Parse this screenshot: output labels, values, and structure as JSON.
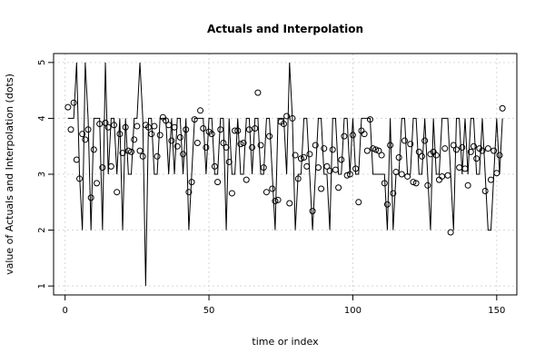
{
  "chart_data": {
    "type": "line",
    "title": "Actuals and Interpolation",
    "xlabel": "time or index",
    "ylabel": "value of Actuals and Interpolation (dots)",
    "xlim": [
      -4,
      157
    ],
    "ylim": [
      0.84,
      5.16
    ],
    "x_ticks": [
      0,
      50,
      100,
      150
    ],
    "x_tick_labels": [
      "0",
      "50",
      "100",
      "150"
    ],
    "y_ticks": [
      1,
      2,
      3,
      4,
      5
    ],
    "y_tick_labels": [
      "1",
      "2",
      "3",
      "4",
      "5"
    ],
    "grid": true,
    "series": [
      {
        "style": "line",
        "x": [
          1,
          2,
          3,
          4,
          5,
          6,
          7,
          8,
          9,
          10,
          11,
          12,
          13,
          14,
          15,
          16,
          17,
          18,
          19,
          20,
          21,
          22,
          23,
          24,
          25,
          26,
          27,
          28,
          29,
          30,
          31,
          32,
          33,
          34,
          35,
          36,
          37,
          38,
          39,
          40,
          41,
          42,
          43,
          44,
          45,
          46,
          47,
          48,
          49,
          50,
          51,
          52,
          53,
          54,
          55,
          56,
          57,
          58,
          59,
          60,
          61,
          62,
          63,
          64,
          65,
          66,
          67,
          68,
          69,
          70,
          71,
          72,
          73,
          74,
          75,
          76,
          77,
          78,
          79,
          80,
          81,
          82,
          83,
          84,
          85,
          86,
          87,
          88,
          89,
          90,
          91,
          92,
          93,
          94,
          95,
          96,
          97,
          98,
          99,
          100,
          101,
          102,
          103,
          104,
          105,
          106,
          107,
          108,
          109,
          110,
          111,
          112,
          113,
          114,
          115,
          116,
          117,
          118,
          119,
          120,
          121,
          122,
          123,
          124,
          125,
          126,
          127,
          128,
          129,
          130,
          131,
          132,
          133,
          134,
          135,
          136,
          137,
          138,
          139,
          140,
          141,
          142,
          143,
          144,
          145,
          146,
          147,
          148,
          149,
          150,
          151,
          152
        ],
        "values": [
          4,
          4,
          4,
          5,
          3,
          2,
          5,
          4,
          2,
          4,
          4,
          4,
          2,
          5,
          3,
          4,
          4,
          3,
          4,
          2,
          4,
          3,
          3,
          4,
          4,
          5,
          4,
          1,
          4,
          4,
          3,
          3,
          4,
          4,
          4,
          3,
          4,
          3,
          4,
          4,
          3,
          4,
          2,
          3,
          4,
          4,
          4,
          4,
          3,
          4,
          4,
          3,
          3,
          4,
          4,
          2,
          4,
          3,
          3,
          4,
          3,
          3,
          4,
          4,
          3,
          4,
          4,
          3,
          3,
          4,
          4,
          3,
          2,
          4,
          4,
          4,
          3,
          5,
          4,
          2,
          3,
          3,
          4,
          4,
          3,
          2,
          3,
          4,
          4,
          3,
          3,
          2,
          4,
          4,
          3,
          3,
          4,
          4,
          3,
          4,
          3,
          3,
          4,
          4,
          4,
          4,
          3,
          3,
          3,
          3,
          3,
          2,
          4,
          2,
          3,
          3,
          4,
          4,
          3,
          3,
          4,
          4,
          3,
          3,
          4,
          3,
          2,
          4,
          3,
          3,
          4,
          4,
          4,
          3,
          2,
          4,
          4,
          3,
          4,
          3,
          4,
          4,
          3,
          3,
          4,
          3,
          2,
          2,
          3,
          4,
          3,
          4
        ]
      },
      {
        "style": "points",
        "x": [
          1,
          2,
          3,
          4,
          5,
          6,
          7,
          8,
          9,
          10,
          11,
          12,
          13,
          14,
          15,
          16,
          17,
          18,
          19,
          20,
          21,
          22,
          23,
          24,
          25,
          26,
          27,
          28,
          29,
          30,
          31,
          32,
          33,
          34,
          35,
          36,
          37,
          38,
          39,
          40,
          41,
          42,
          43,
          44,
          45,
          46,
          47,
          48,
          49,
          50,
          51,
          52,
          53,
          54,
          55,
          56,
          57,
          58,
          59,
          60,
          61,
          62,
          63,
          64,
          65,
          66,
          67,
          68,
          69,
          70,
          71,
          72,
          73,
          74,
          75,
          76,
          77,
          78,
          79,
          80,
          81,
          82,
          83,
          84,
          85,
          86,
          87,
          88,
          89,
          90,
          91,
          92,
          93,
          94,
          95,
          96,
          97,
          98,
          99,
          100,
          101,
          102,
          103,
          104,
          105,
          106,
          107,
          108,
          109,
          110,
          111,
          112,
          113,
          114,
          115,
          116,
          117,
          118,
          119,
          120,
          121,
          122,
          123,
          124,
          125,
          126,
          127,
          128,
          129,
          130,
          131,
          132,
          133,
          134,
          135,
          136,
          137,
          138,
          139,
          140,
          141,
          142,
          143,
          144,
          145,
          146,
          147,
          148,
          149,
          150,
          151,
          152
        ],
        "values": [
          4.2,
          3.8,
          4.28,
          3.26,
          2.92,
          3.72,
          3.62,
          3.8,
          2.58,
          3.44,
          2.84,
          3.9,
          3.12,
          3.92,
          3.84,
          3.14,
          3.88,
          2.68,
          3.72,
          3.38,
          3.84,
          3.42,
          3.4,
          3.62,
          3.86,
          3.42,
          3.32,
          3.88,
          3.84,
          3.72,
          3.86,
          3.32,
          3.7,
          4.02,
          3.96,
          3.88,
          3.6,
          3.84,
          3.5,
          3.66,
          3.36,
          3.8,
          2.68,
          2.86,
          3.98,
          3.56,
          4.14,
          3.82,
          3.48,
          3.76,
          3.72,
          3.14,
          2.86,
          3.8,
          3.56,
          3.48,
          3.22,
          2.66,
          3.78,
          3.78,
          3.54,
          3.56,
          2.9,
          3.8,
          3.48,
          3.82,
          4.46,
          3.52,
          3.12,
          2.68,
          3.68,
          2.74,
          2.52,
          2.54,
          3.94,
          3.9,
          4.04,
          2.48,
          4.0,
          3.34,
          2.92,
          3.28,
          3.3,
          3.14,
          3.36,
          2.34,
          3.52,
          3.12,
          2.74,
          3.46,
          3.14,
          3.06,
          3.44,
          3.08,
          2.76,
          3.26,
          3.68,
          2.98,
          3.0,
          3.7,
          3.1,
          2.5,
          3.78,
          3.72,
          3.42,
          3.98,
          3.46,
          3.44,
          3.42,
          3.34,
          2.84,
          2.46,
          3.52,
          2.66,
          3.04,
          3.3,
          3.0,
          3.6,
          2.96,
          3.54,
          2.86,
          2.84,
          3.4,
          3.32,
          3.6,
          2.8,
          3.36,
          3.4,
          3.34,
          2.9,
          2.96,
          3.46,
          2.98,
          1.96,
          3.52,
          3.44,
          3.12,
          3.48,
          3.1,
          2.8,
          3.4,
          3.5,
          3.28,
          3.46,
          3.42,
          2.7,
          3.46,
          2.9,
          3.42,
          3.02,
          3.34,
          4.18
        ]
      }
    ]
  }
}
